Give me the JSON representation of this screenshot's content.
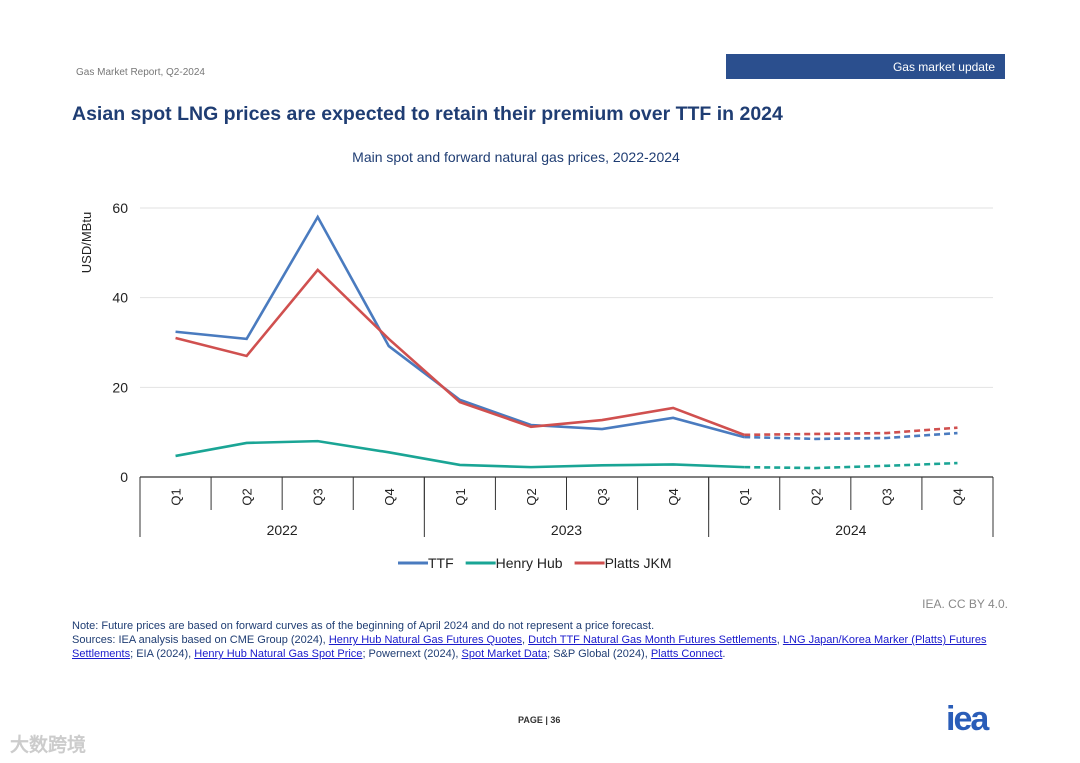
{
  "header": {
    "report": "Gas Market Report, Q2-2024",
    "section": "Gas market update"
  },
  "title": "Asian spot LNG prices are expected to retain their premium over TTF in 2024",
  "credit": "IEA. CC BY 4.0.",
  "note": "Note: Future prices are based on forward curves as of the beginning of April 2024 and do not represent a price forecast.",
  "sources": {
    "prefix": "Sources: IEA analysis based on CME Group (2024), ",
    "l1": "Henry Hub Natural Gas Futures Quotes",
    "s1": ", ",
    "l2": "Dutch TTF Natural Gas Month Futures Settlements",
    "s2": ", ",
    "l3": "LNG Japan/Korea Marker (Platts) Futures Settlements",
    "s3": "; EIA (2024), ",
    "l4": "Henry Hub Natural Gas Spot Price",
    "s4": "; Powernext (2024), ",
    "l5": "Spot Market Data",
    "s5": "; S&P Global (2024), ",
    "l6": "Platts Connect",
    "s6": "."
  },
  "page": "PAGE | 36",
  "logo": "iea",
  "watermark": "大数跨境",
  "chart_data": {
    "type": "line",
    "title": "Main spot and forward natural gas prices, 2022-2024",
    "ylabel": "USD/MBtu",
    "xlabel": "",
    "ylim": [
      0,
      60
    ],
    "yticks": [
      0,
      20,
      40,
      60
    ],
    "grid": true,
    "categories": [
      "Q1",
      "Q2",
      "Q3",
      "Q4",
      "Q1",
      "Q2",
      "Q3",
      "Q4",
      "Q1",
      "Q2",
      "Q3",
      "Q4"
    ],
    "groups": [
      {
        "label": "2022",
        "count": 4
      },
      {
        "label": "2023",
        "count": 4
      },
      {
        "label": "2024",
        "count": 4
      }
    ],
    "forecast_from_index": 8,
    "legend_position": "bottom",
    "series": [
      {
        "name": "TTF",
        "color": "#4a7bbf",
        "values": [
          32.4,
          30.8,
          58,
          29.2,
          17.2,
          11.6,
          10.7,
          13.2,
          8.9,
          8.5,
          8.7,
          9.8
        ]
      },
      {
        "name": "Henry Hub",
        "color": "#1aa595",
        "values": [
          4.7,
          7.6,
          8.0,
          5.5,
          2.7,
          2.2,
          2.6,
          2.8,
          2.2,
          2.0,
          2.5,
          3.1
        ]
      },
      {
        "name": "Platts JKM",
        "color": "#d0504f",
        "values": [
          31,
          27,
          46.2,
          30.8,
          16.7,
          11.2,
          12.7,
          15.4,
          9.4,
          9.6,
          9.8,
          11
        ]
      }
    ]
  }
}
